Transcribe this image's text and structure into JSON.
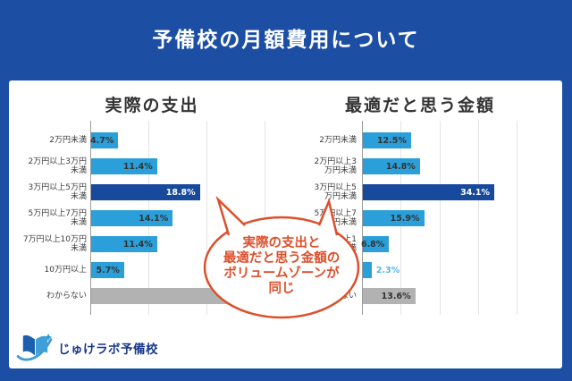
{
  "header": {
    "title": "予備校の月額費用について"
  },
  "chart_data": [
    {
      "type": "bar",
      "orientation": "horizontal",
      "title": "実際の支出",
      "categories": [
        "2万円未満",
        "2万円以上3万円未満",
        "3万円以上5万円未満",
        "5万円以上7万円未満",
        "7万円以上10万円未満",
        "10万円以上",
        "わからない"
      ],
      "categories_display": [
        [
          "2万円未満"
        ],
        [
          "2万円以上3万円",
          "未満"
        ],
        [
          "3万円以上5万円",
          "未満"
        ],
        [
          "5万円以上7万円",
          "未満"
        ],
        [
          "7万円以上10万円",
          "未満"
        ],
        [
          "10万円以上"
        ],
        [
          "わからない"
        ]
      ],
      "values": [
        4.7,
        11.4,
        18.8,
        14.1,
        11.4,
        5.7,
        33.9
      ],
      "labels": [
        "4.7%",
        "11.4%",
        "18.8%",
        "14.1%",
        "11.4%",
        "5.7%",
        ""
      ],
      "xlim": [
        0,
        36
      ],
      "gridlines": [
        10,
        20,
        30
      ],
      "highlight_index": 2,
      "gray_index": 6,
      "xlabel": "",
      "ylabel": "",
      "legend": "none"
    },
    {
      "type": "bar",
      "orientation": "horizontal",
      "title": "最適だと思う金額",
      "categories": [
        "2万円未満",
        "2万円以上3万円未満",
        "3万円以上5万円未満",
        "5万円以上7万円未満",
        "7万円以上10万円未満",
        "10万円以上",
        "わからない"
      ],
      "categories_display": [
        [
          "2万円未満"
        ],
        [
          "2万円以上3",
          "万円未満"
        ],
        [
          "3万円以上5",
          "万円未満"
        ],
        [
          "5万円以上7",
          "万円未満"
        ],
        [
          "7万円以上1",
          "0万円未満"
        ],
        [
          "10万円以上"
        ],
        [
          "わからない"
        ]
      ],
      "values": [
        12.5,
        14.8,
        34.1,
        15.9,
        6.8,
        2.3,
        13.6
      ],
      "labels": [
        "12.5%",
        "14.8%",
        "34.1%",
        "15.9%",
        "6.8%",
        "2.3%",
        "13.6%"
      ],
      "xlim": [
        0,
        48
      ],
      "gridlines": [
        10,
        20,
        30,
        40
      ],
      "highlight_index": 2,
      "gray_index": 6,
      "label_outside_index": 5,
      "xlabel": "",
      "ylabel": "",
      "legend": "none"
    }
  ],
  "callout": {
    "lines": [
      "実際の支出と",
      "最適だと思う金額の",
      "ボリュームゾーンが",
      "同じ"
    ]
  },
  "logo": {
    "text": "じゅけラボ予備校"
  },
  "colors": {
    "accent": "#1c4fa4",
    "bar_primary": "#2b9fd9",
    "bar_highlight": "#17499c",
    "bar_gray": "#b2b2b2",
    "grid": "#e4e4e4",
    "axis": "#9b9b9b",
    "callout": "#dd4f2b",
    "label_outside": "#56b7e6",
    "logo_navy": "#17378c",
    "value_text": "#333333"
  }
}
